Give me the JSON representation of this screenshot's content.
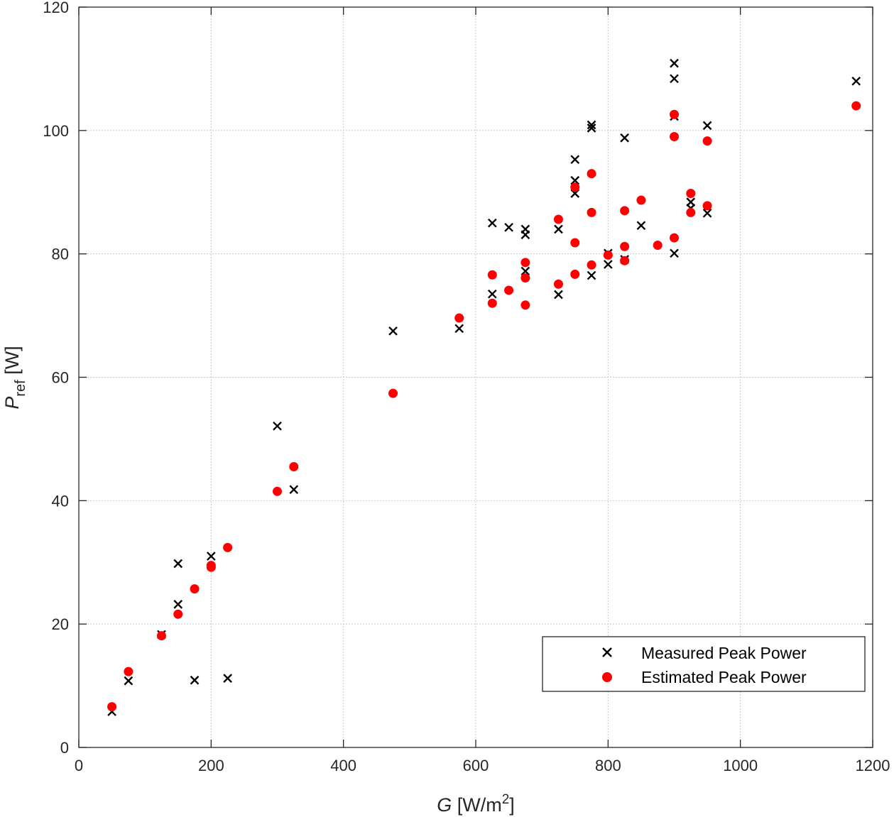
{
  "chart_data": {
    "type": "scatter",
    "xlabel": "G [W/m²]",
    "ylabel": "P_ref [W]",
    "xlim": [
      0,
      1200
    ],
    "ylim": [
      0,
      120
    ],
    "xticks": [
      0,
      200,
      400,
      600,
      800,
      1000,
      1200
    ],
    "yticks": [
      0,
      20,
      40,
      60,
      80,
      100,
      120
    ],
    "grid": true,
    "legend_position": "bottom-right",
    "series": [
      {
        "name": "Measured Peak Power",
        "marker": "x",
        "color": "#000000",
        "points": [
          [
            50,
            5.8
          ],
          [
            75,
            10.8
          ],
          [
            125,
            18.3
          ],
          [
            150,
            29.8
          ],
          [
            150,
            23.2
          ],
          [
            175,
            10.9
          ],
          [
            200,
            31.0
          ],
          [
            225,
            11.2
          ],
          [
            300,
            52.1
          ],
          [
            325,
            41.8
          ],
          [
            475,
            67.5
          ],
          [
            575,
            67.9
          ],
          [
            625,
            85.0
          ],
          [
            625,
            73.5
          ],
          [
            650,
            84.3
          ],
          [
            675,
            84.0
          ],
          [
            675,
            83.1
          ],
          [
            675,
            77.2
          ],
          [
            725,
            84.0
          ],
          [
            725,
            73.4
          ],
          [
            750,
            95.3
          ],
          [
            750,
            91.9
          ],
          [
            750,
            89.8
          ],
          [
            775,
            100.9
          ],
          [
            775,
            100.4
          ],
          [
            775,
            76.5
          ],
          [
            800,
            80.1
          ],
          [
            800,
            78.3
          ],
          [
            825,
            98.8
          ],
          [
            825,
            79.1
          ],
          [
            850,
            84.6
          ],
          [
            900,
            110.9
          ],
          [
            900,
            108.4
          ],
          [
            900,
            102.3
          ],
          [
            900,
            80.1
          ],
          [
            925,
            88.4
          ],
          [
            925,
            87.4
          ],
          [
            950,
            100.8
          ],
          [
            950,
            86.6
          ],
          [
            1175,
            108.0
          ]
        ]
      },
      {
        "name": "Estimated  Peak Power",
        "marker": "o",
        "color": "#ff0000",
        "points": [
          [
            50,
            6.6
          ],
          [
            75,
            12.3
          ],
          [
            125,
            18.1
          ],
          [
            150,
            21.6
          ],
          [
            175,
            25.7
          ],
          [
            200,
            29.5
          ],
          [
            200,
            29.2
          ],
          [
            225,
            32.4
          ],
          [
            300,
            41.5
          ],
          [
            325,
            45.5
          ],
          [
            475,
            57.4
          ],
          [
            575,
            69.6
          ],
          [
            625,
            76.6
          ],
          [
            625,
            72.0
          ],
          [
            650,
            74.1
          ],
          [
            675,
            78.6
          ],
          [
            675,
            76.1
          ],
          [
            675,
            71.7
          ],
          [
            725,
            85.6
          ],
          [
            725,
            75.1
          ],
          [
            750,
            90.8
          ],
          [
            750,
            81.8
          ],
          [
            750,
            76.7
          ],
          [
            775,
            93.0
          ],
          [
            775,
            86.7
          ],
          [
            775,
            78.2
          ],
          [
            800,
            79.8
          ],
          [
            825,
            87.0
          ],
          [
            825,
            81.2
          ],
          [
            825,
            78.9
          ],
          [
            850,
            88.7
          ],
          [
            875,
            81.4
          ],
          [
            900,
            102.6
          ],
          [
            900,
            99.0
          ],
          [
            900,
            82.6
          ],
          [
            925,
            89.8
          ],
          [
            925,
            86.7
          ],
          [
            950,
            98.3
          ],
          [
            950,
            87.8
          ],
          [
            1175,
            104.0
          ]
        ]
      }
    ]
  }
}
